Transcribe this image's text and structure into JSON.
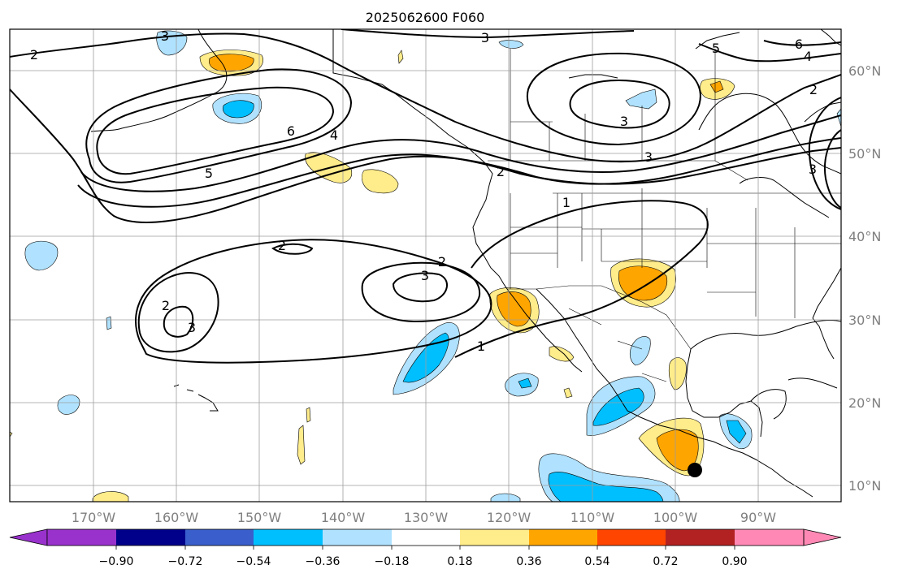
{
  "title": "2025062600 F060",
  "map": {
    "lon_ticks": [
      "170°W",
      "160°W",
      "150°W",
      "140°W",
      "130°W",
      "120°W",
      "110°W",
      "100°W",
      "90°W"
    ],
    "lat_ticks": [
      "60°N",
      "50°N",
      "40°N",
      "30°N",
      "20°N",
      "10°N"
    ],
    "contour_labels": [
      "2",
      "3",
      "5",
      "6",
      "4",
      "3",
      "5",
      "6",
      "4",
      "3",
      "3",
      "2",
      "1",
      "2",
      "2",
      "3",
      "2",
      "3",
      "1",
      "2",
      "3"
    ]
  },
  "colorbar": {
    "tick_labels": [
      "−0.90",
      "−0.72",
      "−0.54",
      "−0.36",
      "−0.18",
      "0.18",
      "0.36",
      "0.54",
      "0.72",
      "0.90"
    ],
    "colors": [
      "#9932cc",
      "#00008b",
      "#3a5fcd",
      "#00bfff",
      "#b0e2ff",
      "#ffffff",
      "#ffec8b",
      "#ffa500",
      "#ff4500",
      "#b22222",
      "#ff89b4"
    ]
  },
  "colors": {
    "grid": "#9e9e9e",
    "frame": "#000000",
    "contour": "#000000"
  },
  "marker": {
    "label": "",
    "color": "#000000"
  }
}
